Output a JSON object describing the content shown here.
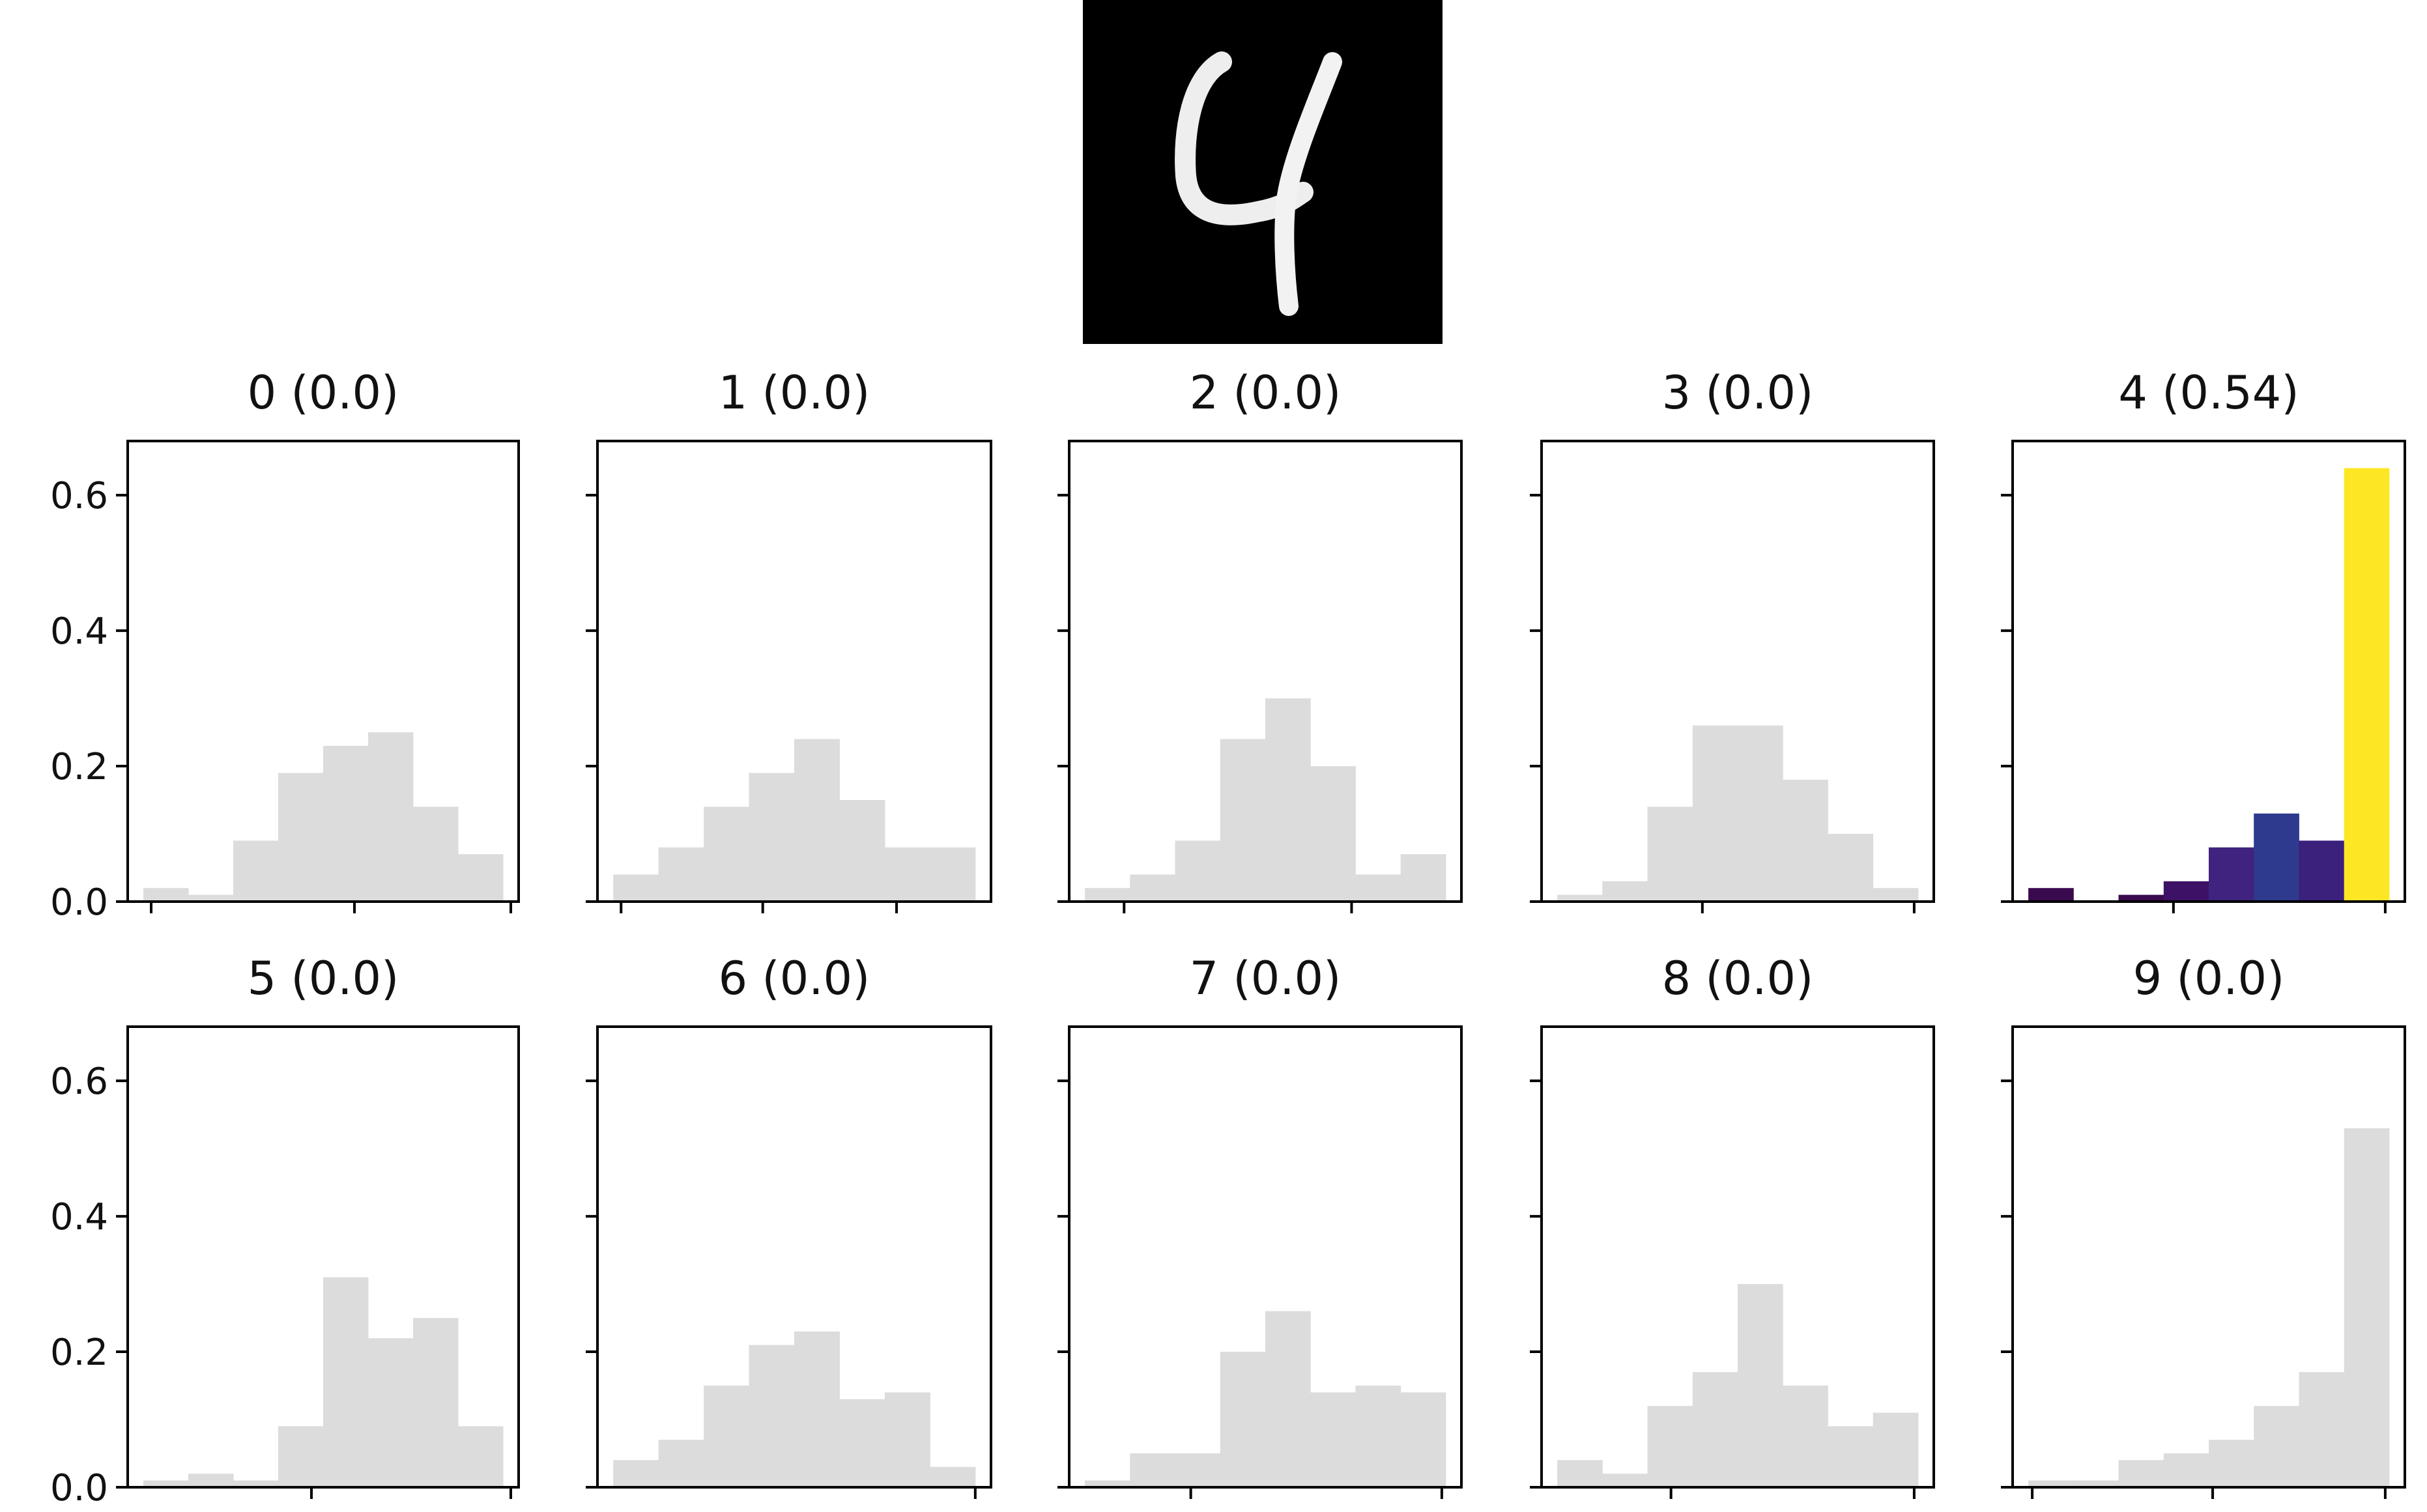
{
  "digit_image": {
    "description": "28x28 grayscale input digit",
    "shown_digit": "4"
  },
  "chart_data": [
    {
      "type": "bar",
      "title": "0 (0.0)",
      "values": [
        0.02,
        0.01,
        0.09,
        0.19,
        0.23,
        0.25,
        0.14,
        0.07
      ],
      "highlight": false
    },
    {
      "type": "bar",
      "title": "1 (0.0)",
      "values": [
        0.04,
        0.08,
        0.14,
        0.19,
        0.24,
        0.15,
        0.08,
        0.08
      ],
      "highlight": false
    },
    {
      "type": "bar",
      "title": "2 (0.0)",
      "values": [
        0.02,
        0.04,
        0.09,
        0.24,
        0.3,
        0.2,
        0.04,
        0.07
      ],
      "highlight": false
    },
    {
      "type": "bar",
      "title": "3 (0.0)",
      "values": [
        0.01,
        0.03,
        0.14,
        0.26,
        0.26,
        0.18,
        0.1,
        0.02
      ],
      "highlight": false
    },
    {
      "type": "bar",
      "title": "4 (0.54)",
      "values": [
        0.02,
        0.0,
        0.01,
        0.03,
        0.08,
        0.13,
        0.09,
        0.64
      ],
      "highlight": true
    },
    {
      "type": "bar",
      "title": "5 (0.0)",
      "values": [
        0.01,
        0.02,
        0.01,
        0.09,
        0.31,
        0.22,
        0.25,
        0.09
      ],
      "highlight": false
    },
    {
      "type": "bar",
      "title": "6 (0.0)",
      "values": [
        0.04,
        0.07,
        0.15,
        0.21,
        0.23,
        0.13,
        0.14,
        0.03
      ],
      "highlight": false
    },
    {
      "type": "bar",
      "title": "7 (0.0)",
      "values": [
        0.01,
        0.05,
        0.05,
        0.2,
        0.26,
        0.14,
        0.15,
        0.14
      ],
      "highlight": false
    },
    {
      "type": "bar",
      "title": "8 (0.0)",
      "values": [
        0.04,
        0.02,
        0.12,
        0.17,
        0.3,
        0.15,
        0.09,
        0.11
      ],
      "highlight": false
    },
    {
      "type": "bar",
      "title": "9 (0.0)",
      "values": [
        0.01,
        0.01,
        0.04,
        0.05,
        0.07,
        0.12,
        0.17,
        0.53
      ],
      "highlight": false
    }
  ],
  "axes": {
    "ylim": [
      0,
      0.68
    ],
    "yticks": [
      0.0,
      0.2,
      0.4,
      0.6
    ],
    "ytick_labels": [
      "0.0",
      "0.2",
      "0.4",
      "0.6"
    ],
    "xtick_frac": [
      [
        0.06,
        0.58,
        0.98
      ],
      [
        0.06,
        0.42,
        0.76
      ],
      [
        0.14,
        0.72
      ],
      [
        0.41,
        0.95
      ],
      [
        0.41,
        0.95
      ],
      [
        0.47,
        0.98
      ],
      [
        0.96
      ],
      [
        0.31,
        0.95
      ],
      [
        0.33,
        0.95
      ],
      [
        0.05,
        0.51,
        0.95
      ]
    ]
  },
  "colors": {
    "gray_bar": "#dcdcdc",
    "axis": "#000000",
    "viridis": [
      "#440154",
      "#46085c",
      "#471063",
      "#3b0f70",
      "#3e2a84",
      "#313695",
      "#33267a",
      "#fde725"
    ],
    "highlight_bars": [
      "#3a0a4f",
      "#3a0a4f",
      "#3a0a4f",
      "#3d1266",
      "#3f237e",
      "#2e3a8e",
      "#3b207c",
      "#fde725"
    ]
  }
}
